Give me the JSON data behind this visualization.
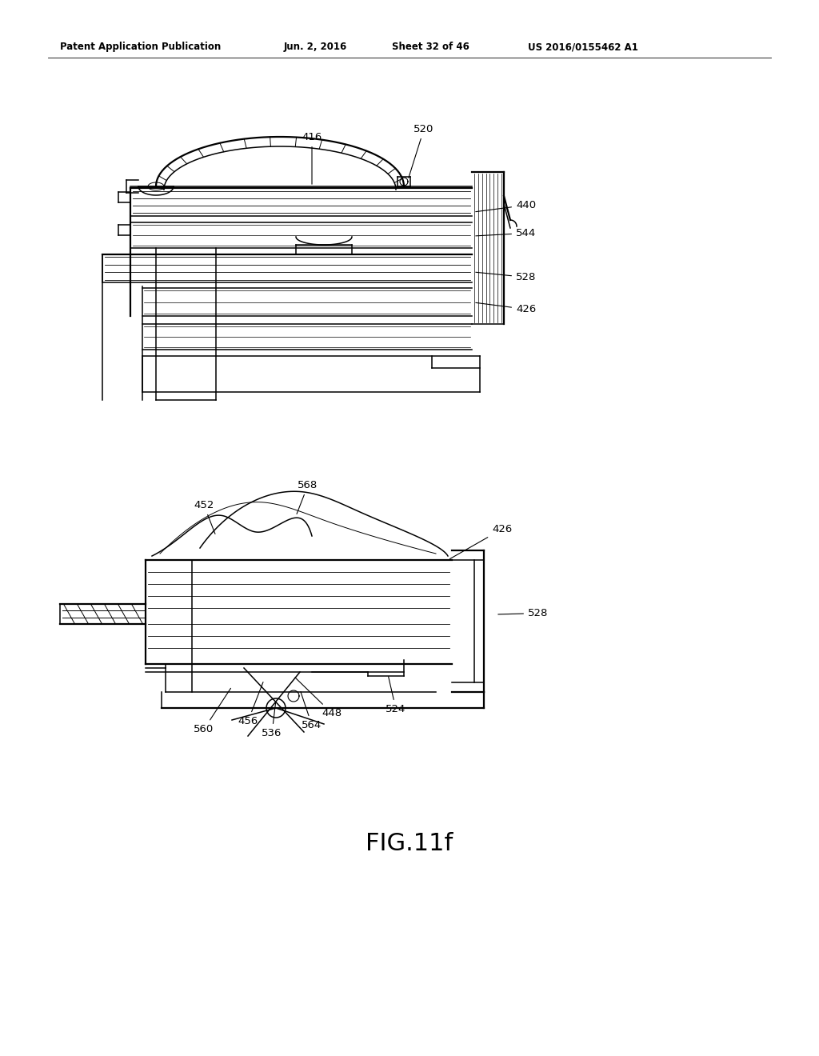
{
  "background_color": "#ffffff",
  "header_text": "Patent Application Publication",
  "header_date": "Jun. 2, 2016",
  "header_sheet": "Sheet 32 of 46",
  "header_patent": "US 2016/0155462 A1",
  "figure_label": "FIG.11f",
  "line_color": "#000000"
}
